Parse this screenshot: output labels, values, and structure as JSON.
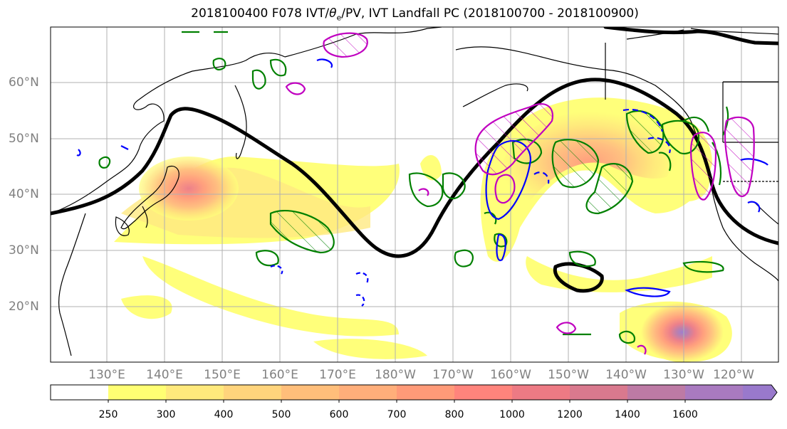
{
  "title": "2018100400 F078 IVT/θe/PV, IVT Landfall PC (2018100700 - 2018100900)",
  "title_parts": {
    "pre": "2018100400 F078 IVT/",
    "theta": "θ",
    "sub": "e",
    "post": "/PV, IVT Landfall PC (2018100700 - 2018100900)"
  },
  "lat_labels": [
    "60°N",
    "50°N",
    "40°N",
    "30°N",
    "20°N"
  ],
  "lon_labels": [
    "130°E",
    "140°E",
    "150°E",
    "160°E",
    "170°E",
    "180°W",
    "170°W",
    "160°W",
    "150°W",
    "140°W",
    "130°W",
    "120°W"
  ],
  "colorbar": {
    "ticks": [
      "250",
      "300",
      "400",
      "500",
      "600",
      "700",
      "800",
      "1000",
      "1200",
      "1400",
      "1600"
    ],
    "colors": [
      "#ffffff",
      "#ffff73",
      "#ffe97c",
      "#ffd47c",
      "#ffbe7a",
      "#ffae7a",
      "#ff9a78",
      "#ff847c",
      "#ed7a84",
      "#d9798e",
      "#bd7aa5",
      "#a97ac0",
      "#9979cc"
    ],
    "extend": "max"
  },
  "layers": {
    "ivt_fill": "IVT shading (yellow-orange-purple)",
    "jet_contour_color": "#000000",
    "theta_e_positive_color": "#008000",
    "theta_e_negative_color": "#0000ff",
    "pv_color": "#c000c0"
  }
}
